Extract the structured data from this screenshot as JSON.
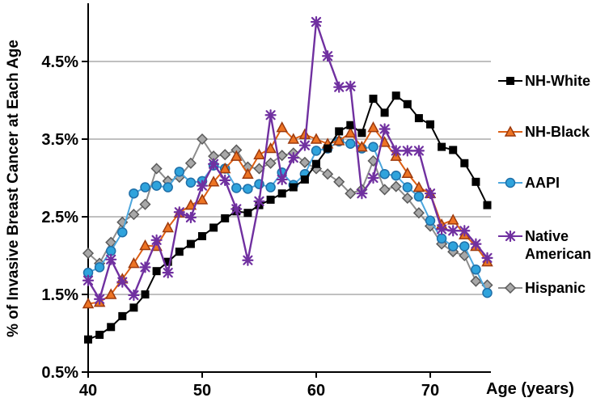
{
  "chart_data": {
    "type": "line",
    "title": "",
    "xlabel": "Age (years)",
    "ylabel": "% of Invasive Breast Cancer at Each Age",
    "x_ticks": [
      40,
      50,
      60,
      70
    ],
    "y_ticks": [
      0.5,
      1.5,
      2.5,
      3.5,
      4.5
    ],
    "y_tick_labels": [
      "0.5%",
      "1.5%",
      "2.5%",
      "3.5%",
      "4.5%"
    ],
    "xlim": [
      40,
      75
    ],
    "ylim": [
      0.5,
      5.2
    ],
    "grid": "horizontal-only",
    "legend_position": "right",
    "x": [
      40,
      41,
      42,
      43,
      44,
      45,
      46,
      47,
      48,
      49,
      50,
      51,
      52,
      53,
      54,
      55,
      56,
      57,
      58,
      59,
      60,
      61,
      62,
      63,
      64,
      65,
      66,
      67,
      68,
      69,
      70,
      71,
      72,
      73,
      74,
      75
    ],
    "series": [
      {
        "name": "NH-White",
        "label_lines": [
          "NH-White"
        ],
        "marker": "square",
        "color": "#000000",
        "marker_fill": "#000000",
        "marker_stroke": "#000000",
        "values": [
          0.92,
          0.98,
          1.08,
          1.22,
          1.33,
          1.5,
          1.8,
          1.92,
          2.05,
          2.15,
          2.25,
          2.36,
          2.48,
          2.57,
          2.55,
          2.65,
          2.72,
          2.8,
          2.88,
          2.98,
          3.18,
          3.38,
          3.6,
          3.68,
          3.58,
          4.02,
          3.84,
          4.06,
          3.95,
          3.77,
          3.69,
          3.4,
          3.36,
          3.19,
          2.95,
          2.65
        ]
      },
      {
        "name": "NH-Black",
        "label_lines": [
          "NH-Black"
        ],
        "marker": "triangle",
        "color": "#DD5F13",
        "marker_fill": "#ED7424",
        "marker_stroke": "#9C3A0E",
        "values": [
          1.38,
          1.4,
          1.5,
          1.7,
          1.9,
          2.13,
          2.12,
          2.36,
          2.55,
          2.65,
          2.72,
          2.95,
          3.12,
          3.28,
          3.05,
          3.3,
          3.38,
          3.65,
          3.5,
          3.56,
          3.5,
          3.44,
          3.48,
          3.58,
          3.4,
          3.65,
          3.46,
          3.28,
          3.06,
          2.88,
          2.8,
          2.4,
          2.46,
          2.27,
          2.12,
          1.92
        ]
      },
      {
        "name": "AAPI",
        "label_lines": [
          "AAPI"
        ],
        "marker": "circle",
        "color": "#4BA6DD",
        "marker_fill": "#2FA3DC",
        "marker_stroke": "#1F6FA8",
        "values": [
          1.78,
          1.85,
          2.06,
          2.3,
          2.8,
          2.88,
          2.9,
          2.88,
          3.08,
          2.94,
          2.96,
          3.16,
          3.12,
          2.87,
          2.86,
          2.92,
          2.88,
          3.07,
          2.91,
          3.05,
          3.35,
          3.38,
          3.47,
          3.44,
          3.38,
          3.4,
          3.05,
          3.03,
          2.88,
          2.76,
          2.45,
          2.22,
          2.12,
          2.12,
          1.82,
          1.52
        ]
      },
      {
        "name": "Native American",
        "label_lines": [
          "Native",
          "American"
        ],
        "marker": "star",
        "color": "#7030A0",
        "marker_fill": "#7030A0",
        "marker_stroke": "#7030A0",
        "values": [
          1.68,
          1.44,
          1.95,
          1.66,
          1.49,
          1.85,
          2.2,
          1.78,
          2.56,
          2.49,
          2.9,
          3.18,
          2.97,
          2.6,
          1.94,
          2.7,
          3.81,
          2.98,
          3.26,
          3.42,
          5.01,
          4.57,
          4.17,
          4.18,
          2.8,
          3.0,
          3.63,
          3.35,
          3.35,
          3.35,
          2.8,
          2.34,
          2.32,
          2.32,
          2.15,
          1.97
        ]
      },
      {
        "name": "Hispanic",
        "label_lines": [
          "Hispanic"
        ],
        "marker": "diamond",
        "color": "#8C8C8C",
        "marker_fill": "#A8A8A8",
        "marker_stroke": "#5A5A5A",
        "values": [
          2.03,
          1.9,
          2.17,
          2.43,
          2.53,
          2.66,
          3.12,
          2.96,
          3.01,
          3.19,
          3.5,
          3.28,
          3.3,
          3.36,
          3.14,
          3.12,
          3.19,
          3.29,
          3.32,
          3.2,
          3.12,
          3.05,
          2.95,
          2.8,
          2.85,
          3.22,
          2.85,
          2.89,
          2.74,
          2.55,
          2.38,
          2.15,
          2.05,
          2.0,
          1.67,
          1.62
        ]
      }
    ],
    "axis_color": "#000000",
    "gridline_color": "#808080"
  }
}
